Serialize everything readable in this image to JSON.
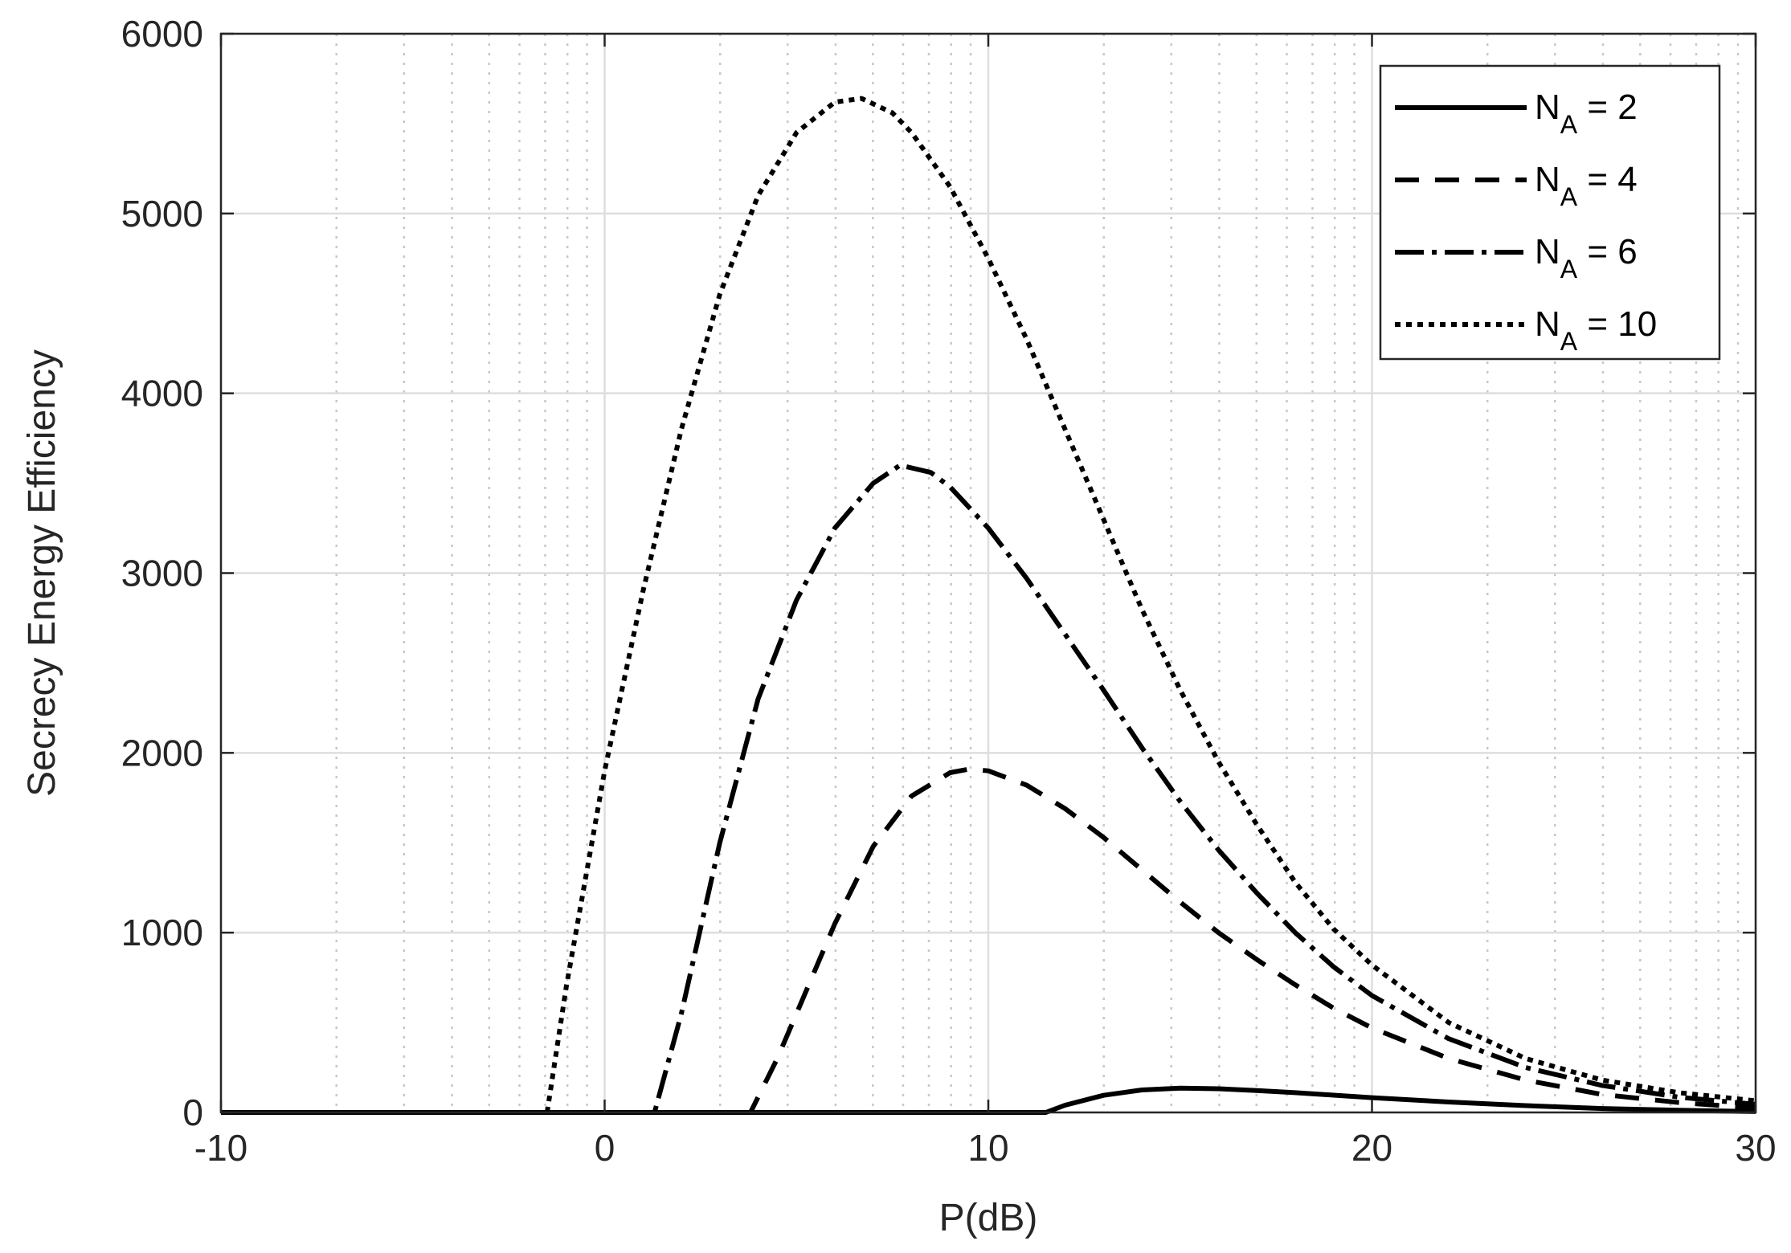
{
  "chart_data": {
    "type": "line",
    "xlabel": "P(dB)",
    "ylabel": "Secrecy Energy Efficiency",
    "xlim": [
      -10,
      30
    ],
    "ylim": [
      0,
      6000
    ],
    "xticks": [
      "-10",
      "0",
      "10",
      "20",
      "30"
    ],
    "yticks": [
      "0",
      "1000",
      "2000",
      "3000",
      "4000",
      "5000",
      "6000"
    ],
    "grid": true,
    "minor_grid_x": "log-style dotted",
    "legend_position": "top-right",
    "series": [
      {
        "name": "N_A = 2",
        "name_main": "N",
        "name_sub": "A",
        "name_rest": " = 2",
        "style": "solid",
        "x": [
          -10,
          0,
          10,
          11.5,
          12,
          13,
          14,
          15,
          16,
          17,
          18,
          19,
          20,
          22,
          24,
          26,
          28,
          30
        ],
        "y": [
          0,
          0,
          0,
          0,
          40,
          95,
          125,
          135,
          132,
          122,
          110,
          96,
          82,
          58,
          38,
          22,
          12,
          5
        ]
      },
      {
        "name": "N_A = 4",
        "name_main": "N",
        "name_sub": "A",
        "name_rest": " = 4",
        "style": "dashed",
        "x": [
          -10,
          0,
          3.8,
          4.5,
          5,
          6,
          7,
          8,
          9,
          9.5,
          10,
          11,
          12,
          13,
          14,
          15,
          16,
          17,
          18,
          19,
          20,
          22,
          24,
          26,
          28,
          30
        ],
        "y": [
          0,
          0,
          0,
          300,
          550,
          1050,
          1480,
          1760,
          1890,
          1910,
          1900,
          1820,
          1690,
          1530,
          1350,
          1170,
          1000,
          850,
          710,
          580,
          470,
          300,
          180,
          100,
          55,
          25
        ]
      },
      {
        "name": "N_A = 6",
        "name_main": "N",
        "name_sub": "A",
        "name_rest": " = 6",
        "style": "dash-dot",
        "x": [
          -10,
          0,
          1.3,
          2,
          3,
          4,
          5,
          6,
          7,
          7.7,
          8.5,
          9,
          10,
          11,
          12,
          13,
          14,
          15,
          16,
          17,
          18,
          19,
          20,
          22,
          24,
          26,
          28,
          30
        ],
        "y": [
          0,
          0,
          0,
          550,
          1500,
          2300,
          2850,
          3250,
          3500,
          3600,
          3560,
          3480,
          3250,
          2970,
          2660,
          2350,
          2030,
          1730,
          1460,
          1220,
          1000,
          810,
          650,
          410,
          250,
          150,
          85,
          45
        ]
      },
      {
        "name": "N_A = 10",
        "name_main": "N",
        "name_sub": "A",
        "name_rest": " = 10",
        "style": "dotted",
        "x": [
          -10,
          -1.5,
          -1,
          0,
          1,
          2,
          3,
          4,
          5,
          6,
          6.7,
          7.5,
          8,
          9,
          10,
          11,
          12,
          13,
          14,
          15,
          16,
          17,
          18,
          19,
          20,
          22,
          24,
          26,
          28,
          30
        ],
        "y": [
          0,
          0,
          700,
          1900,
          2900,
          3800,
          4550,
          5100,
          5450,
          5620,
          5640,
          5560,
          5450,
          5150,
          4750,
          4300,
          3800,
          3300,
          2800,
          2350,
          1950,
          1600,
          1280,
          1020,
          820,
          500,
          300,
          180,
          110,
          65
        ]
      }
    ]
  }
}
